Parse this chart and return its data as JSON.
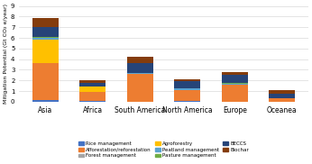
{
  "categories": [
    "Asia",
    "Africa",
    "South America",
    "North America",
    "Europe",
    "Oceanea"
  ],
  "series": {
    "Rice management": [
      0.15,
      0.05,
      0.02,
      0.05,
      0.02,
      0.01
    ],
    "Afforestation/reforestation": [
      3.5,
      0.85,
      2.6,
      1.05,
      1.6,
      0.35
    ],
    "Forest management": [
      0.0,
      0.0,
      0.0,
      0.0,
      0.0,
      0.0
    ],
    "Agroforestry": [
      2.2,
      0.55,
      0.0,
      0.0,
      0.0,
      0.0
    ],
    "Peatland management": [
      0.12,
      0.0,
      0.05,
      0.12,
      0.08,
      0.0
    ],
    "Pasture management": [
      0.08,
      0.0,
      0.05,
      0.05,
      0.05,
      0.0
    ],
    "BECCS": [
      1.0,
      0.35,
      0.95,
      0.65,
      0.75,
      0.35
    ],
    "Biochar": [
      0.85,
      0.25,
      0.55,
      0.15,
      0.25,
      0.35
    ]
  },
  "colors": {
    "Rice management": "#4472c4",
    "Afforestation/reforestation": "#ed7d31",
    "Forest management": "#a5a5a5",
    "Agroforestry": "#ffc000",
    "Peatland management": "#5ba3d0",
    "Pasture management": "#70ad47",
    "BECCS": "#264478",
    "Biochar": "#843c0c"
  },
  "ylabel": "Mitigation Potential (Gt CO₂ e/year)",
  "ylim": [
    0,
    9
  ],
  "yticks": [
    0,
    1,
    2,
    3,
    4,
    5,
    6,
    7,
    8,
    9
  ],
  "legend_order": [
    "Rice management",
    "Afforestation/reforestation",
    "Forest management",
    "Agroforestry",
    "Peatland management",
    "Pasture management",
    "BECCS",
    "Biochar"
  ],
  "background_color": "#ffffff",
  "grid_color": "#d9d9d9"
}
